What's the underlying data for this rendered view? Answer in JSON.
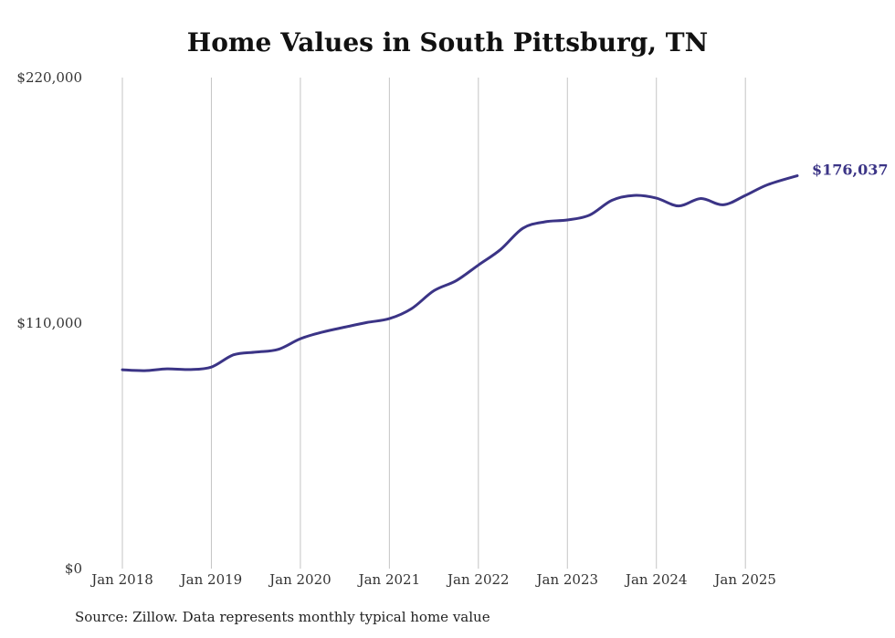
{
  "chart_data": {
    "type": "line",
    "title": "Home Values in South Pittsburg, TN",
    "source": "Source: Zillow. Data represents monthly typical home value",
    "xlabel": "",
    "ylabel": "",
    "ylim": [
      0,
      220000
    ],
    "y_ticks": [
      {
        "value": 0,
        "label": "$0"
      },
      {
        "value": 110000,
        "label": "$110,000"
      },
      {
        "value": 220000,
        "label": "$220,000"
      }
    ],
    "x_ticks": [
      {
        "value": 2018.0,
        "label": "Jan 2018"
      },
      {
        "value": 2019.0,
        "label": "Jan 2019"
      },
      {
        "value": 2020.0,
        "label": "Jan 2020"
      },
      {
        "value": 2021.0,
        "label": "Jan 2021"
      },
      {
        "value": 2022.0,
        "label": "Jan 2022"
      },
      {
        "value": 2023.0,
        "label": "Jan 2023"
      },
      {
        "value": 2024.0,
        "label": "Jan 2024"
      },
      {
        "value": 2025.0,
        "label": "Jan 2025"
      }
    ],
    "xlim": [
      2018.0,
      2025.583
    ],
    "grid": "vertical",
    "line_color": "#3b3486",
    "end_label": "$176,037",
    "series": [
      {
        "name": "Typical home value",
        "points": [
          [
            2018.0,
            89100
          ],
          [
            2018.25,
            88700
          ],
          [
            2018.5,
            89500
          ],
          [
            2018.75,
            89200
          ],
          [
            2019.0,
            90300
          ],
          [
            2019.25,
            95800
          ],
          [
            2019.5,
            97000
          ],
          [
            2019.75,
            98200
          ],
          [
            2020.0,
            103000
          ],
          [
            2020.25,
            106000
          ],
          [
            2020.5,
            108200
          ],
          [
            2020.75,
            110300
          ],
          [
            2021.0,
            112000
          ],
          [
            2021.25,
            116500
          ],
          [
            2021.5,
            124500
          ],
          [
            2021.75,
            129000
          ],
          [
            2022.0,
            136000
          ],
          [
            2022.25,
            143000
          ],
          [
            2022.5,
            152500
          ],
          [
            2022.75,
            155400
          ],
          [
            2023.0,
            156200
          ],
          [
            2023.25,
            158400
          ],
          [
            2023.5,
            165000
          ],
          [
            2023.75,
            167200
          ],
          [
            2024.0,
            166000
          ],
          [
            2024.25,
            162500
          ],
          [
            2024.5,
            165800
          ],
          [
            2024.75,
            163000
          ],
          [
            2025.0,
            167200
          ],
          [
            2025.25,
            172000
          ],
          [
            2025.583,
            176037
          ]
        ]
      }
    ]
  }
}
